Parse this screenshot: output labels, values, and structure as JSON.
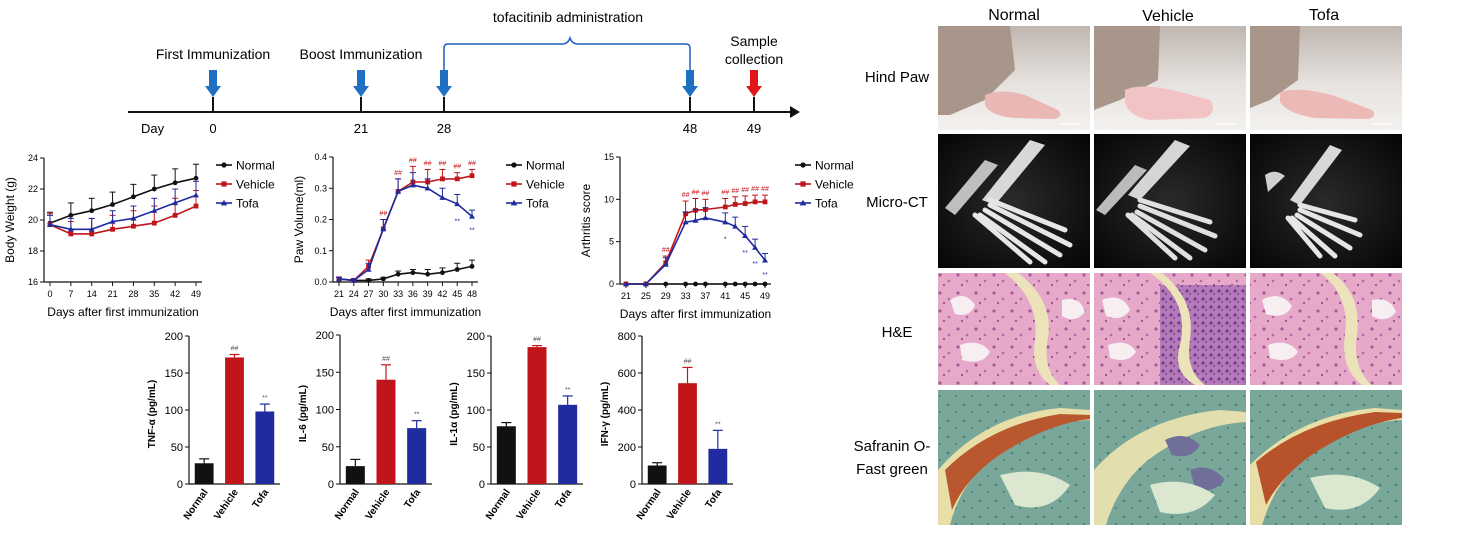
{
  "timeline": {
    "day_label": "Day",
    "events": [
      {
        "label": "First Immunization",
        "day": 0,
        "arrow": "blue"
      },
      {
        "label": "Boost Immunization",
        "day": 21,
        "arrow": "blue"
      },
      {
        "label": "",
        "day": 28,
        "arrow": "blue"
      },
      {
        "label": "",
        "day": 48,
        "arrow": "blue"
      },
      {
        "label": "Sample collection",
        "day": 49,
        "arrow": "red"
      }
    ],
    "ticks": [
      "0",
      "21",
      "28",
      "48",
      "49"
    ],
    "sample_label_line1": "Sample",
    "sample_label_line2": "collection",
    "bracket_label": "tofacitinib administration",
    "colors": {
      "blue_arrow": "#1f6fc5",
      "red_arrow": "#e0161b"
    }
  },
  "legend_series": [
    "Normal",
    "Vehicle",
    "Tofa"
  ],
  "colors": {
    "Normal": "#111111",
    "Vehicle": "#c0161b",
    "Tofa": "#1f2b9e"
  },
  "chart_data": [
    {
      "id": "body-weight",
      "type": "line",
      "ylabel": "Body Weight (g)",
      "xlabel": "Days after first immunization",
      "x": [
        0,
        7,
        14,
        21,
        28,
        35,
        42,
        49
      ],
      "ylim": [
        16,
        24
      ],
      "yticks": [
        16,
        18,
        20,
        22,
        24
      ],
      "legend": "top-right",
      "series": [
        {
          "name": "Normal",
          "values": [
            19.8,
            20.3,
            20.6,
            21.0,
            21.5,
            22.0,
            22.4,
            22.7
          ],
          "err": [
            0.7,
            0.8,
            0.8,
            0.8,
            0.8,
            0.9,
            0.9,
            0.9
          ],
          "marks": []
        },
        {
          "name": "Vehicle",
          "values": [
            19.7,
            19.1,
            19.1,
            19.4,
            19.6,
            19.8,
            20.3,
            20.9
          ],
          "err": [
            0.7,
            0.8,
            1.0,
            0.9,
            1.0,
            1.1,
            1.1,
            1.0
          ],
          "marks": []
        },
        {
          "name": "Tofa",
          "values": [
            19.7,
            19.4,
            19.4,
            19.9,
            20.1,
            20.6,
            21.1,
            21.6
          ],
          "err": [
            0.6,
            0.7,
            0.7,
            0.7,
            0.8,
            0.8,
            0.9,
            0.9
          ],
          "marks": []
        }
      ]
    },
    {
      "id": "paw-volume",
      "type": "line",
      "ylabel": "Paw Volume(ml)",
      "xlabel": "Days after first immunization",
      "x": [
        21,
        24,
        27,
        30,
        33,
        36,
        39,
        42,
        45,
        48
      ],
      "ylim": [
        0,
        0.4
      ],
      "yticks": [
        0.0,
        0.1,
        0.2,
        0.3,
        0.4
      ],
      "legend": "top-right",
      "series": [
        {
          "name": "Normal",
          "values": [
            0.01,
            0.005,
            0.005,
            0.01,
            0.025,
            0.03,
            0.025,
            0.03,
            0.04,
            0.05
          ],
          "err": [
            0.005,
            0.005,
            0.005,
            0.005,
            0.01,
            0.01,
            0.015,
            0.015,
            0.02,
            0.02
          ],
          "marks": []
        },
        {
          "name": "Vehicle",
          "values": [
            0.01,
            0.005,
            0.05,
            0.17,
            0.29,
            0.32,
            0.32,
            0.33,
            0.33,
            0.34
          ],
          "err": [
            0.005,
            0.005,
            0.02,
            0.03,
            0.04,
            0.05,
            0.04,
            0.03,
            0.02,
            0.02
          ],
          "marks": [
            "",
            "",
            "",
            "##",
            "##",
            "##",
            "##",
            "##",
            "##",
            "##"
          ]
        },
        {
          "name": "Tofa",
          "values": [
            0.01,
            0.005,
            0.04,
            0.17,
            0.29,
            0.31,
            0.3,
            0.27,
            0.25,
            0.21
          ],
          "err": [
            0.005,
            0.005,
            0.02,
            0.03,
            0.04,
            0.04,
            0.03,
            0.03,
            0.03,
            0.02
          ],
          "marks": [
            "",
            "",
            "",
            "",
            "",
            "",
            "",
            "",
            "**",
            "**"
          ]
        }
      ]
    },
    {
      "id": "arthritis-score",
      "type": "line",
      "ylabel": "Arthritis score",
      "xlabel": "Days after first immunization",
      "x": [
        21,
        25,
        29,
        33,
        35,
        37,
        41,
        43,
        45,
        47,
        49
      ],
      "xticks": [
        21,
        25,
        29,
        33,
        37,
        41,
        45,
        49
      ],
      "ylim": [
        0,
        15
      ],
      "yticks": [
        0,
        5,
        10,
        15
      ],
      "legend": "top-right",
      "series": [
        {
          "name": "Normal",
          "values": [
            0,
            0,
            0,
            0,
            0,
            0,
            0,
            0,
            0,
            0,
            0
          ],
          "err": [
            0,
            0,
            0,
            0,
            0,
            0,
            0,
            0,
            0,
            0,
            0
          ],
          "marks": []
        },
        {
          "name": "Vehicle",
          "values": [
            0,
            0,
            2.5,
            8.3,
            8.7,
            8.8,
            9.1,
            9.4,
            9.5,
            9.7,
            9.7
          ],
          "err": [
            0,
            0,
            0.8,
            1.5,
            1.4,
            1.2,
            1.0,
            0.9,
            0.9,
            0.8,
            0.8
          ],
          "marks": [
            "",
            "",
            "##",
            "##",
            "##",
            "##",
            "##",
            "##",
            "##",
            "##",
            "##"
          ]
        },
        {
          "name": "Tofa",
          "values": [
            0,
            0,
            2.3,
            7.3,
            7.5,
            7.8,
            7.3,
            6.8,
            5.7,
            4.3,
            2.8
          ],
          "err": [
            0,
            0,
            0.8,
            1.2,
            1.3,
            1.2,
            1.1,
            1.1,
            1.1,
            1.0,
            0.8
          ],
          "marks": [
            "",
            "",
            "",
            "",
            "",
            "",
            "*",
            "",
            "**",
            "**",
            "**"
          ]
        }
      ]
    },
    {
      "id": "tnf-alpha",
      "type": "bar",
      "ylabel": "TNF-α (pg/mL)",
      "categories": [
        "Normal",
        "Vehicle",
        "Tofa"
      ],
      "values": [
        28,
        171,
        98
      ],
      "err": [
        6,
        4,
        10
      ],
      "marks": [
        "",
        "##",
        "**"
      ],
      "ylim": [
        0,
        200
      ],
      "yticks": [
        0,
        50,
        100,
        150,
        200
      ]
    },
    {
      "id": "il-6",
      "type": "bar",
      "ylabel": "IL-6 (pg/mL)",
      "categories": [
        "Normal",
        "Vehicle",
        "Tofa"
      ],
      "values": [
        24,
        140,
        75
      ],
      "err": [
        9,
        20,
        10
      ],
      "marks": [
        "",
        "##",
        "**"
      ],
      "ylim": [
        0,
        200
      ],
      "yticks": [
        0,
        50,
        100,
        150,
        200
      ]
    },
    {
      "id": "il-1a",
      "type": "bar",
      "ylabel": "IL-1α (pg/mL)",
      "categories": [
        "Normal",
        "Vehicle",
        "Tofa"
      ],
      "values": [
        78,
        185,
        107
      ],
      "err": [
        5,
        2,
        12
      ],
      "marks": [
        "",
        "##",
        "**"
      ],
      "ylim": [
        0,
        200
      ],
      "yticks": [
        0,
        50,
        100,
        150,
        200
      ]
    },
    {
      "id": "ifn-gamma",
      "type": "bar",
      "ylabel": "IFN-γ (pg/mL)",
      "categories": [
        "Normal",
        "Vehicle",
        "Tofa"
      ],
      "values": [
        100,
        545,
        190
      ],
      "err": [
        15,
        85,
        100
      ],
      "marks": [
        "",
        "##",
        "**"
      ],
      "ylim": [
        0,
        800
      ],
      "yticks": [
        0,
        200,
        400,
        600,
        800
      ]
    }
  ],
  "image_grid": {
    "columns": [
      "Normal",
      "Vehicle",
      "Tofa"
    ],
    "rows": [
      {
        "label": "Hind Paw",
        "label_lines": [
          "Hind Paw"
        ],
        "kind": "photo"
      },
      {
        "label": "Micro-CT",
        "label_lines": [
          "Micro-CT"
        ],
        "kind": "ct"
      },
      {
        "label": "H&E",
        "label_lines": [
          "H&E"
        ],
        "kind": "he"
      },
      {
        "label": "Safranin O-Fast green",
        "label_lines": [
          "Safranin O-",
          "Fast green"
        ],
        "kind": "safranin"
      }
    ]
  }
}
